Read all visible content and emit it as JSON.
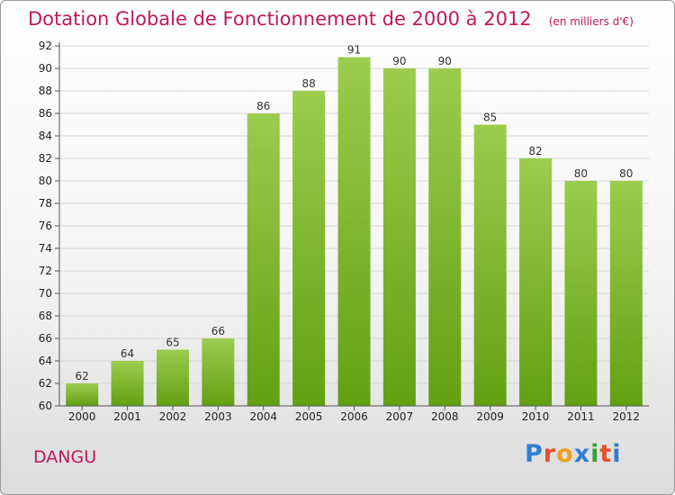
{
  "header": {
    "title": "Dotation Globale de Fonctionnement de 2000 à 2012",
    "unit": "(en milliers d'€)"
  },
  "footer": {
    "commune": "DANGU",
    "logo": "Proxiti"
  },
  "colors": {
    "title": "#c2185b",
    "bar_top": "#9ccc4e",
    "bar_bottom": "#62a012",
    "logo_letters": [
      "#2e7fd0",
      "#e8502a",
      "#f0a020",
      "#2e7fd0",
      "#3aa03a",
      "#e8502a",
      "#2e7fd0"
    ]
  },
  "chart_data": {
    "type": "bar",
    "categories": [
      "2000",
      "2001",
      "2002",
      "2003",
      "2004",
      "2005",
      "2006",
      "2007",
      "2008",
      "2009",
      "2010",
      "2011",
      "2012"
    ],
    "values": [
      62,
      64,
      65,
      66,
      86,
      88,
      91,
      90,
      90,
      85,
      82,
      80,
      80
    ],
    "y_ticks": [
      60,
      62,
      64,
      66,
      68,
      70,
      72,
      74,
      76,
      78,
      80,
      82,
      84,
      86,
      88,
      90,
      92
    ],
    "ylim": [
      60,
      92
    ],
    "grid": true,
    "data_labels": true
  }
}
